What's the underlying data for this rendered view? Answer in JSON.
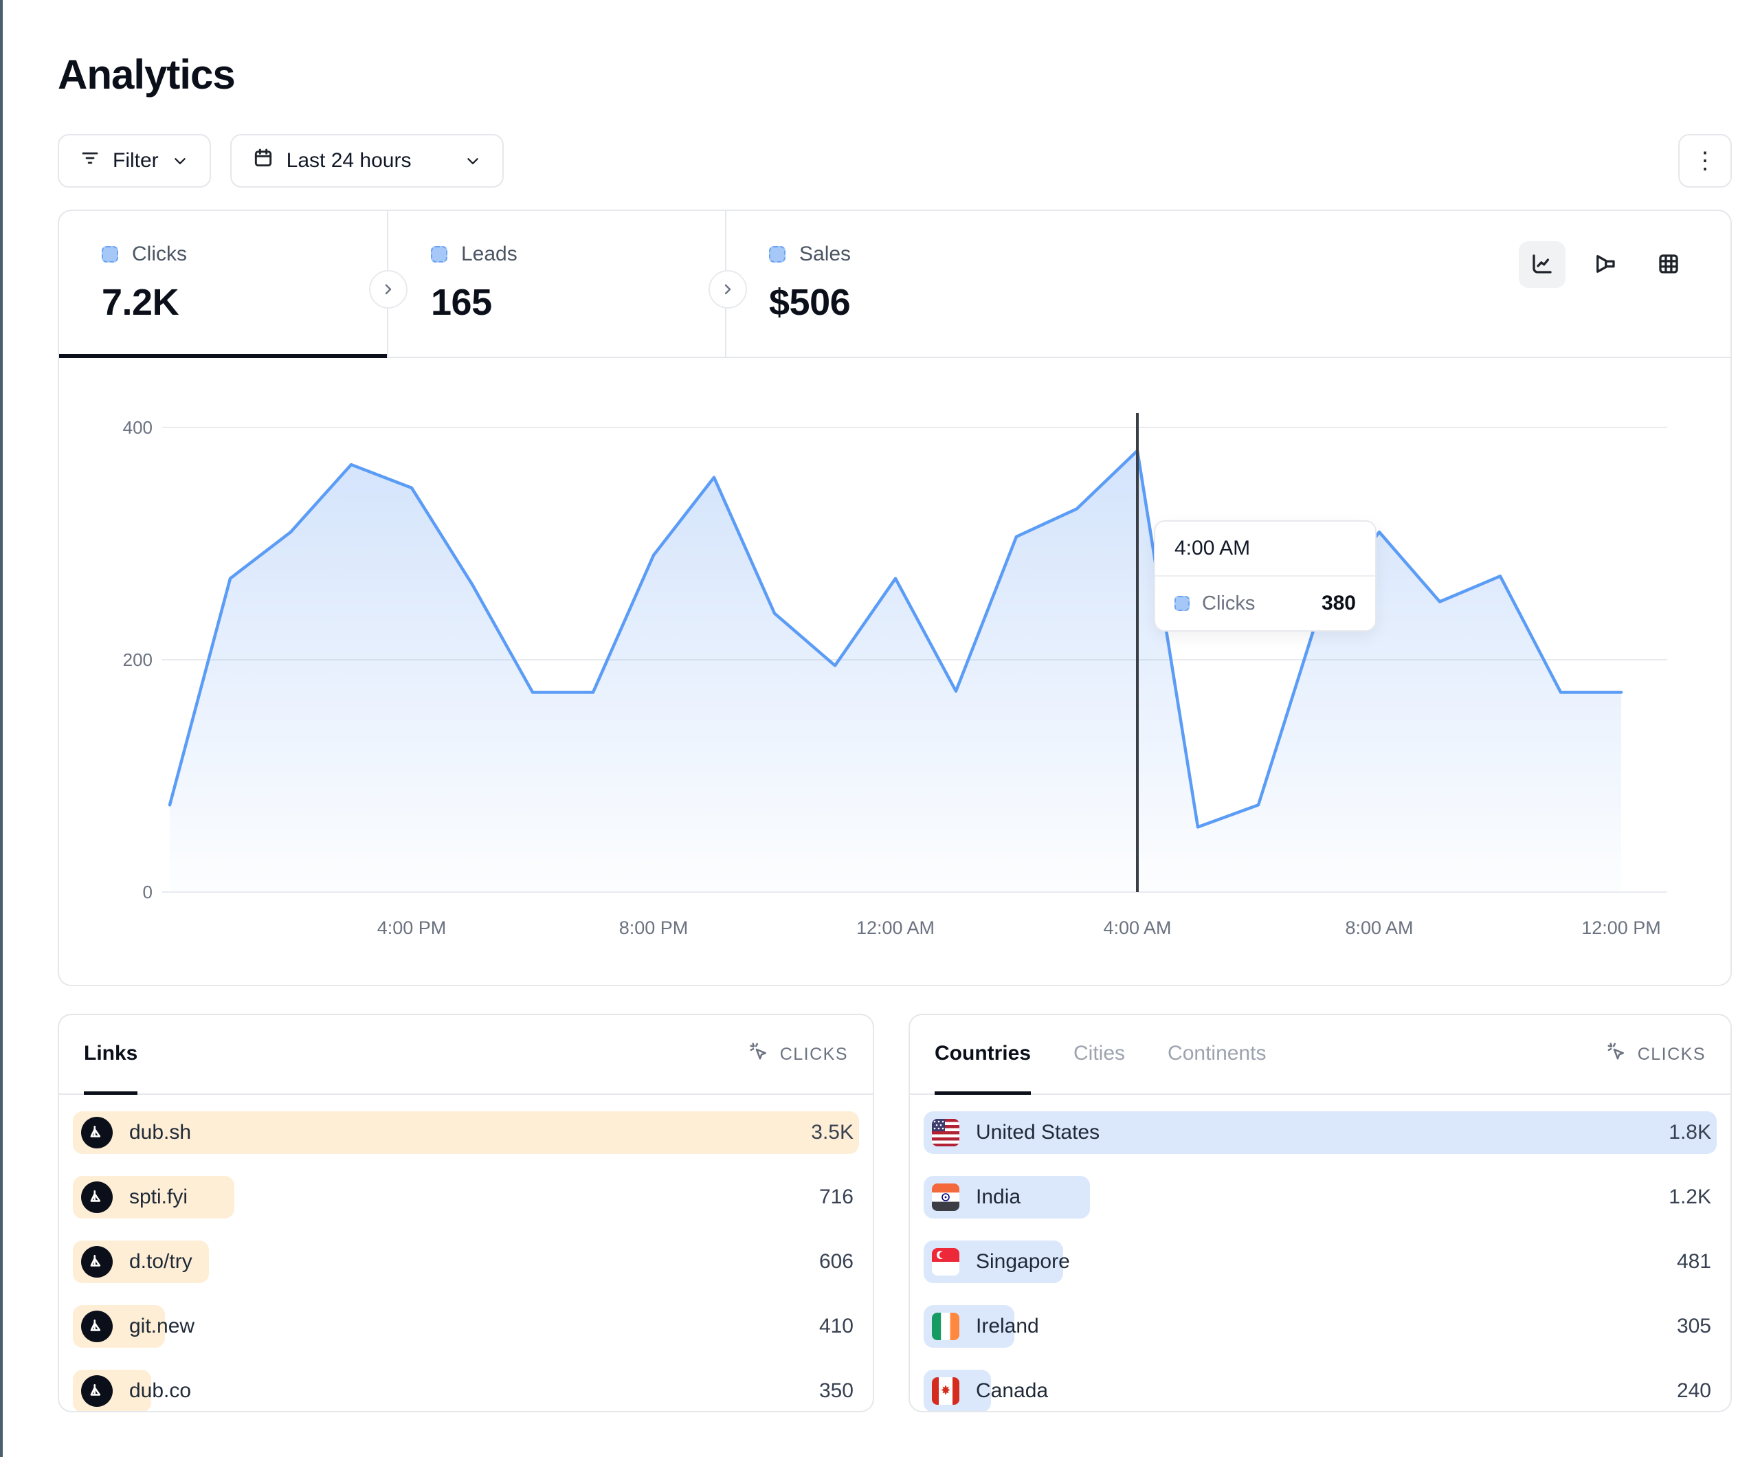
{
  "page": {
    "title": "Analytics"
  },
  "toolbar": {
    "filter_label": "Filter",
    "date_range_label": "Last 24 hours",
    "more_menu_glyph": "⋮"
  },
  "stats": [
    {
      "label": "Clicks",
      "value": "7.2K",
      "active": true
    },
    {
      "label": "Leads",
      "value": "165",
      "active": false
    },
    {
      "label": "Sales",
      "value": "$506",
      "active": false
    }
  ],
  "chart_data": {
    "type": "area",
    "series_name": "Clicks",
    "x_hours": [
      "12PM",
      "1PM",
      "2PM",
      "3PM",
      "4PM",
      "5PM",
      "6PM",
      "7PM",
      "8PM",
      "9PM",
      "10PM",
      "11PM",
      "12AM",
      "1AM",
      "2AM",
      "3AM",
      "4AM",
      "5AM",
      "6AM",
      "7AM",
      "8AM",
      "9AM",
      "10AM",
      "11AM",
      "12PM"
    ],
    "values": [
      75,
      270,
      310,
      368,
      348,
      265,
      172,
      172,
      290,
      357,
      240,
      195,
      270,
      173,
      306,
      330,
      380,
      56,
      75,
      240,
      310,
      250,
      272,
      172,
      172
    ],
    "ylim": [
      0,
      400
    ],
    "yticks": [
      0,
      200,
      400
    ],
    "xtick_indices": [
      4,
      8,
      12,
      16,
      20,
      24
    ],
    "xtick_labels": [
      "4:00 PM",
      "8:00 PM",
      "12:00 AM",
      "4:00 AM",
      "8:00 AM",
      "12:00 PM"
    ],
    "grid": true,
    "crosshair_index": 16,
    "tooltip": {
      "time": "4:00 AM",
      "series": "Clicks",
      "value": "380"
    }
  },
  "links_panel": {
    "tabs": [
      {
        "label": "Links",
        "active": true
      }
    ],
    "metric_label": "CLICKS",
    "rows": [
      {
        "label": "dub.sh",
        "value": "3.5K",
        "bar_pct": 100
      },
      {
        "label": "spti.fyi",
        "value": "716",
        "bar_pct": 20.5
      },
      {
        "label": "d.to/try",
        "value": "606",
        "bar_pct": 17.3
      },
      {
        "label": "git.new",
        "value": "410",
        "bar_pct": 11.7
      },
      {
        "label": "dub.co",
        "value": "350",
        "bar_pct": 10
      }
    ]
  },
  "countries_panel": {
    "tabs": [
      {
        "label": "Countries",
        "active": true
      },
      {
        "label": "Cities",
        "active": false
      },
      {
        "label": "Continents",
        "active": false
      }
    ],
    "metric_label": "CLICKS",
    "rows": [
      {
        "label": "United States",
        "value": "1.8K",
        "bar_pct": 100,
        "flag": "us"
      },
      {
        "label": "India",
        "value": "1.2K",
        "bar_pct": 21,
        "flag": "in"
      },
      {
        "label": "Singapore",
        "value": "481",
        "bar_pct": 17.6,
        "flag": "sg"
      },
      {
        "label": "Ireland",
        "value": "305",
        "bar_pct": 11.4,
        "flag": "ie"
      },
      {
        "label": "Canada",
        "value": "240",
        "bar_pct": 8.5,
        "flag": "ca"
      }
    ]
  },
  "colors": {
    "accent_strip": "#4a616c",
    "line": "#5b9cf6",
    "area_top": "rgba(120,170,245,0.32)",
    "area_bottom": "rgba(120,170,245,0.02)",
    "gridline": "#e8eaee",
    "axis_text": "#6b7280",
    "crosshair": "#3a3f45",
    "bar_orange": "#feeed6",
    "bar_blue": "#dbe7fb",
    "legend_fill": "#a5c8f8",
    "legend_border": "#6ba3f1"
  }
}
